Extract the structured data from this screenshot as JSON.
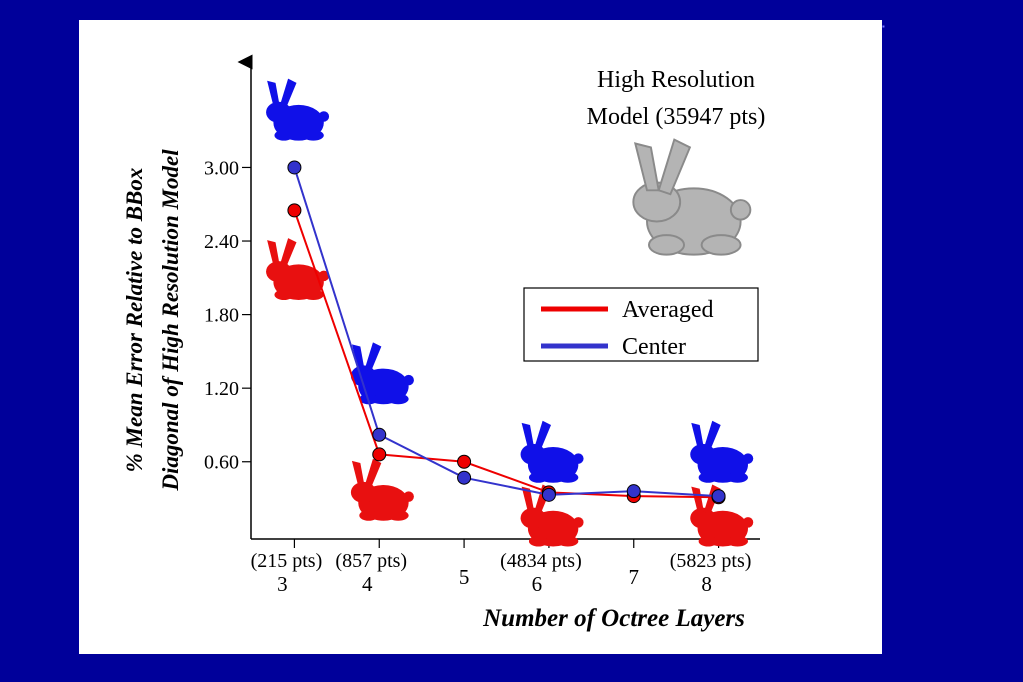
{
  "slide": {
    "background_color": "#00009a",
    "panel_color": "#ffffff"
  },
  "chart_data": {
    "type": "line",
    "ylabel_line1": "% Mean Error Relative to BBox",
    "ylabel_line2": "Diagonal of High Resolution Model",
    "xlabel": "Number of Octree Layers",
    "y_ticks": [
      "0.60",
      "1.20",
      "1.80",
      "2.40",
      "3.00"
    ],
    "y_tick_values": [
      0.6,
      1.2,
      1.8,
      2.4,
      3.0
    ],
    "ylim": [
      -0.03,
      3.86
    ],
    "x_values": [
      3,
      4,
      5,
      6,
      7,
      8
    ],
    "xlim": [
      2.5,
      8.5
    ],
    "x_ticks": [
      {
        "value": 3,
        "pts": "(215 pts)",
        "label": "3"
      },
      {
        "value": 4,
        "pts": "(857 pts)",
        "label": "4"
      },
      {
        "value": 5,
        "pts": "",
        "label": "5"
      },
      {
        "value": 6,
        "pts": "(4834 pts)",
        "label": "6"
      },
      {
        "value": 7,
        "pts": "",
        "label": "7"
      },
      {
        "value": 8,
        "pts": "(5823 pts)",
        "label": "8"
      }
    ],
    "series": [
      {
        "name": "Averaged",
        "color": "#ee0000",
        "x": [
          3,
          4,
          5,
          6,
          7,
          8
        ],
        "values": [
          2.65,
          0.66,
          0.6,
          0.35,
          0.32,
          0.31
        ]
      },
      {
        "name": "Center",
        "color": "#3333cc",
        "x": [
          3,
          4,
          5,
          6,
          7,
          8
        ],
        "values": [
          3.0,
          0.82,
          0.47,
          0.33,
          0.36,
          0.32
        ]
      }
    ],
    "legend_placement": "right",
    "grid": false,
    "annotation_line1": "High Resolution",
    "annotation_line2": "Model (35947 pts)",
    "thumbnails": [
      {
        "name": "bunny-blue-3",
        "color": "#1010e8",
        "x": 3,
        "y": 3.45
      },
      {
        "name": "bunny-red-3",
        "color": "#e81010",
        "x": 3,
        "y": 2.15
      },
      {
        "name": "bunny-blue-4",
        "color": "#1010e8",
        "x": 4,
        "y": 1.3
      },
      {
        "name": "bunny-red-4",
        "color": "#e81010",
        "x": 4,
        "y": 0.35
      },
      {
        "name": "bunny-blue-6",
        "color": "#1010e8",
        "x": 6,
        "y": 0.66
      },
      {
        "name": "bunny-red-6",
        "color": "#e81010",
        "x": 6,
        "y": 0.14
      },
      {
        "name": "bunny-blue-8",
        "color": "#1010e8",
        "x": 8,
        "y": 0.66
      },
      {
        "name": "bunny-red-8",
        "color": "#e81010",
        "x": 8,
        "y": 0.14
      }
    ],
    "high_res_model": {
      "name": "bunny-gray-high-res",
      "color": "#b4b4b4"
    }
  }
}
